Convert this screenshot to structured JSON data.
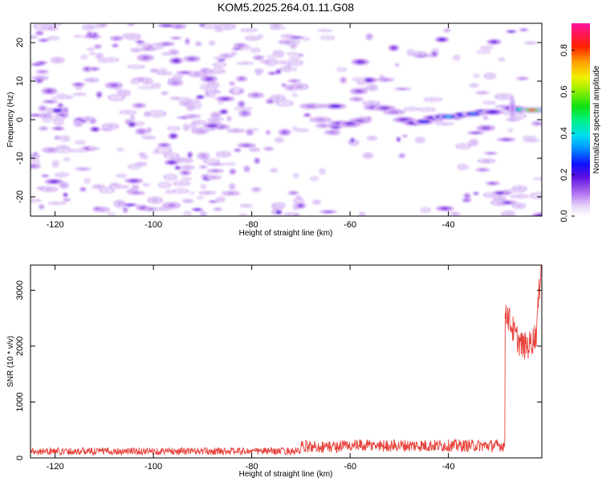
{
  "title": "KOM5.2025.264.01.11.G08",
  "chart_data": [
    {
      "type": "heatmap",
      "xlabel": "Height of straight line (km)",
      "ylabel": "Frequency (Hz)",
      "xlim": [
        -125,
        -21
      ],
      "ylim": [
        -25,
        25
      ],
      "xticks": [
        -120,
        -100,
        -80,
        -60,
        -40
      ],
      "yticks": [
        -20,
        -10,
        0,
        10,
        20
      ],
      "colorbar": {
        "label": "Normalized spectral amplitude",
        "range": [
          0,
          0.93
        ],
        "ticks": [
          0.0,
          0.2,
          0.4,
          0.6,
          0.8
        ],
        "colormap": "rainbow: white - purple - blue - cyan - green - yellow - orange - red - magenta"
      },
      "features": [
        {
          "x": -63,
          "y": 3.5,
          "amplitude": 0.25
        },
        {
          "x": -60,
          "y": -1,
          "amplitude": 0.2
        },
        {
          "x": -53,
          "y": 3,
          "amplitude": 0.18
        },
        {
          "x": -45,
          "y": -0.5,
          "amplitude": 0.3
        },
        {
          "x": -40,
          "y": 0.8,
          "amplitude": 0.4
        },
        {
          "x": -35,
          "y": 1.5,
          "amplitude": 0.35
        },
        {
          "x": -23,
          "y": 2.5,
          "amplitude": 0.93
        },
        {
          "x": -29,
          "y": -19,
          "amplitude": 0.22
        },
        {
          "x": -28,
          "y": -21.5,
          "amplitude": 0.2
        }
      ]
    },
    {
      "type": "line",
      "xlabel": "Height of straight line (km)",
      "ylabel": "SNR (10 * v/v)",
      "xlim": [
        -125,
        -21
      ],
      "ylim": [
        0,
        3450
      ],
      "xticks": [
        -120,
        -100,
        -80,
        -60,
        -40
      ],
      "yticks": [
        0,
        1000,
        2000,
        3000
      ],
      "series": [
        {
          "color": "#e8413a",
          "segments": [
            {
              "x_start": -125,
              "x_end": -70,
              "mean": 120,
              "noise": 65
            },
            {
              "x_start": -70,
              "x_end": -28.5,
              "mean": 200,
              "noise": 110
            },
            {
              "x_start": -28.5,
              "x_end": -21,
              "mean": 2450,
              "noise": 250
            }
          ]
        }
      ]
    }
  ]
}
